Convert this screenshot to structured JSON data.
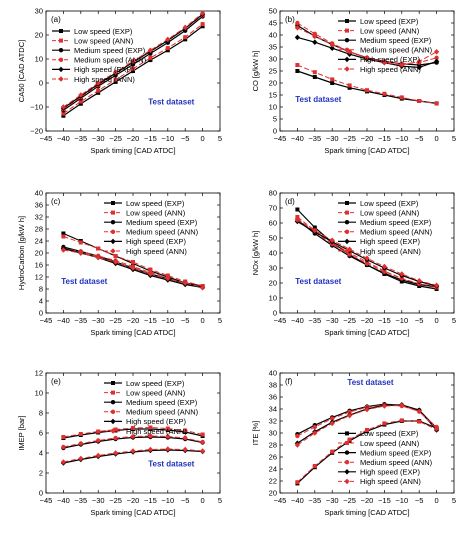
{
  "figure": {
    "x_ticks": [
      "−45",
      "−40",
      "−35",
      "−30",
      "−25",
      "−20",
      "−15",
      "−10",
      "−5",
      "0",
      "5"
    ],
    "xlabel": "Spark timing [CAD ATDC]",
    "test_label": "Test dataset",
    "colors": {
      "exp": "#000000",
      "ann": "#e03030",
      "annotation": "#2233bb"
    }
  },
  "chart_data": [
    {
      "type": "line",
      "panel_label": "(a)",
      "ylabel": "CA50 [CAD ATDC]",
      "xlim": [
        -45,
        5
      ],
      "ylim": [
        -25,
        30
      ],
      "y_ticks": [
        "−20",
        "−10",
        "0",
        "10",
        "20",
        "30"
      ],
      "legend_position": "top-left",
      "annotation_position": "lower-right",
      "x": [
        -40,
        -35,
        -30,
        -25,
        -20,
        -15,
        -10,
        -5,
        0
      ],
      "series": [
        {
          "name": "Low speed (EXP)",
          "style": "exp",
          "values": [
            -18,
            -12.5,
            -7.5,
            -2.5,
            2.5,
            7.5,
            12,
            17,
            23
          ]
        },
        {
          "name": "Low speed (ANN)",
          "style": "ann",
          "values": [
            -17,
            -11.5,
            -6.5,
            -1.5,
            3.5,
            8.5,
            13,
            18,
            24
          ]
        },
        {
          "name": "Medium speed (EXP)",
          "style": "exp",
          "values": [
            -15.5,
            -10,
            -4.5,
            0.5,
            5.5,
            10.5,
            15.5,
            21,
            27.5
          ]
        },
        {
          "name": "Medium speed (ANN)",
          "style": "ann",
          "values": [
            -15,
            -9.5,
            -4,
            1.5,
            6.5,
            11.5,
            16.5,
            22,
            28
          ]
        },
        {
          "name": "High speed (EXP)",
          "style": "exp",
          "values": [
            -14.5,
            -9,
            -3.5,
            1.5,
            6.5,
            11.5,
            16.5,
            22,
            28.5
          ]
        },
        {
          "name": "High speed (ANN)",
          "style": "ann",
          "values": [
            -14,
            -8.5,
            -3,
            2,
            7,
            12,
            17,
            22.5,
            29
          ]
        }
      ]
    },
    {
      "type": "line",
      "panel_label": "(b)",
      "ylabel": "CO [g/kW h]",
      "xlim": [
        -45,
        5
      ],
      "ylim": [
        0,
        50
      ],
      "y_ticks": [
        "0",
        "5",
        "10",
        "15",
        "20",
        "25",
        "30",
        "35",
        "40",
        "45",
        "50"
      ],
      "legend_position": "top-right",
      "annotation_position": "lower-left",
      "x": [
        -40,
        -35,
        -30,
        -25,
        -20,
        -15,
        -10,
        -5,
        0
      ],
      "series": [
        {
          "name": "Low speed (EXP)",
          "style": "exp",
          "values": [
            25,
            22.5,
            20,
            18,
            16.5,
            15,
            13.5,
            12.5,
            11.5
          ]
        },
        {
          "name": "Low speed (ANN)",
          "style": "ann",
          "values": [
            27.5,
            24.5,
            21.5,
            19,
            17,
            15.5,
            14,
            12.5,
            11.5
          ]
        },
        {
          "name": "Medium speed (EXP)",
          "style": "exp",
          "values": [
            44,
            39.5,
            36,
            33,
            30.5,
            29,
            28,
            27.5,
            28.5
          ]
        },
        {
          "name": "Medium speed (ANN)",
          "style": "ann",
          "values": [
            45,
            40.5,
            36.5,
            33,
            30.5,
            29,
            28,
            28.5,
            30.5
          ]
        },
        {
          "name": "High speed (EXP)",
          "style": "exp",
          "values": [
            39,
            37,
            34.5,
            32,
            30,
            28.5,
            27,
            26.5,
            29
          ]
        },
        {
          "name": "High speed (ANN)",
          "style": "ann",
          "values": [
            43,
            39.5,
            36,
            33,
            30.5,
            28.5,
            27.5,
            29,
            33
          ]
        }
      ]
    },
    {
      "type": "line",
      "panel_label": "(c)",
      "ylabel": "HydroCarbon [g/kW h]",
      "xlim": [
        -45,
        5
      ],
      "ylim": [
        0,
        40
      ],
      "y_ticks": [
        "0",
        "4",
        "8",
        "12",
        "16",
        "20",
        "24",
        "28",
        "32",
        "36",
        "40"
      ],
      "legend_position": "top-right",
      "annotation_position": "lower-left",
      "x": [
        -40,
        -35,
        -30,
        -25,
        -20,
        -15,
        -10,
        -5,
        0
      ],
      "series": [
        {
          "name": "Low speed (EXP)",
          "style": "exp",
          "values": [
            26.5,
            24,
            21.5,
            19,
            16.5,
            14,
            12,
            10,
            9
          ]
        },
        {
          "name": "Low speed (ANN)",
          "style": "ann",
          "values": [
            25.5,
            23.5,
            21.5,
            19,
            17,
            14.5,
            12.5,
            10.5,
            9
          ]
        },
        {
          "name": "Medium speed (EXP)",
          "style": "exp",
          "values": [
            22,
            20.5,
            19,
            17,
            15,
            13,
            11.5,
            10,
            8.5
          ]
        },
        {
          "name": "Medium speed (ANN)",
          "style": "ann",
          "values": [
            21.5,
            20.5,
            19,
            17.5,
            15.5,
            13.5,
            11.5,
            10,
            8.5
          ]
        },
        {
          "name": "High speed (EXP)",
          "style": "exp",
          "values": [
            21.5,
            20,
            18.5,
            16.5,
            14.5,
            12.5,
            11,
            9.5,
            8.5
          ]
        },
        {
          "name": "High speed (ANN)",
          "style": "ann",
          "values": [
            21,
            20,
            18.5,
            17,
            15,
            13,
            11.5,
            10,
            8.5
          ]
        }
      ]
    },
    {
      "type": "line",
      "panel_label": "(d)",
      "ylabel": "NOx [g/kW h]",
      "xlim": [
        -45,
        5
      ],
      "ylim": [
        0,
        80
      ],
      "y_ticks": [
        "0",
        "10",
        "20",
        "30",
        "40",
        "50",
        "60",
        "70",
        "80"
      ],
      "legend_position": "top-right",
      "annotation_position": "lower-left",
      "x": [
        -40,
        -35,
        -30,
        -25,
        -20,
        -15,
        -10,
        -5,
        0
      ],
      "series": [
        {
          "name": "Low speed (EXP)",
          "style": "exp",
          "values": [
            69,
            57,
            47,
            39,
            32,
            26,
            21,
            18,
            16
          ]
        },
        {
          "name": "Low speed (ANN)",
          "style": "ann",
          "values": [
            64,
            55,
            47,
            40,
            34,
            28,
            23,
            19,
            17
          ]
        },
        {
          "name": "Medium speed (EXP)",
          "style": "exp",
          "values": [
            62,
            53,
            45,
            38,
            32,
            26.5,
            22,
            19,
            17.5
          ]
        },
        {
          "name": "Medium speed (ANN)",
          "style": "ann",
          "values": [
            63,
            54,
            46,
            39,
            33,
            27.5,
            23,
            19.5,
            17.5
          ]
        },
        {
          "name": "High speed (EXP)",
          "style": "exp",
          "values": [
            61,
            54,
            47.5,
            41.5,
            35.5,
            30,
            25,
            21,
            18
          ]
        },
        {
          "name": "High speed (ANN)",
          "style": "ann",
          "values": [
            62,
            55,
            48.5,
            42.5,
            36.5,
            31,
            26,
            21.5,
            18.5
          ]
        }
      ]
    },
    {
      "type": "line",
      "panel_label": "(e)",
      "ylabel": "IMEP [bar]",
      "xlim": [
        -45,
        5
      ],
      "ylim": [
        0,
        12
      ],
      "y_ticks": [
        "0",
        "2",
        "4",
        "6",
        "8",
        "10",
        "12"
      ],
      "legend_position": "top-right",
      "annotation_position": "lower-right",
      "x": [
        -40,
        -35,
        -30,
        -25,
        -20,
        -15,
        -10,
        -5,
        0
      ],
      "series": [
        {
          "name": "Low speed (EXP)",
          "style": "exp",
          "values": [
            5.5,
            5.8,
            6.05,
            6.25,
            6.4,
            6.4,
            6.3,
            6.1,
            5.7
          ]
        },
        {
          "name": "Low speed (ANN)",
          "style": "ann",
          "values": [
            5.6,
            5.9,
            6.15,
            6.35,
            6.5,
            6.55,
            6.45,
            6.25,
            5.85
          ]
        },
        {
          "name": "Medium speed (EXP)",
          "style": "exp",
          "values": [
            4.5,
            4.85,
            5.15,
            5.4,
            5.55,
            5.6,
            5.55,
            5.4,
            5.05
          ]
        },
        {
          "name": "Medium speed (ANN)",
          "style": "ann",
          "values": [
            4.6,
            4.95,
            5.25,
            5.5,
            5.65,
            5.7,
            5.65,
            5.5,
            5.1
          ]
        },
        {
          "name": "High speed (EXP)",
          "style": "exp",
          "values": [
            3,
            3.35,
            3.65,
            3.9,
            4.1,
            4.25,
            4.3,
            4.25,
            4.15
          ]
        },
        {
          "name": "High speed (ANN)",
          "style": "ann",
          "values": [
            3.1,
            3.45,
            3.75,
            4.0,
            4.2,
            4.35,
            4.4,
            4.35,
            4.2
          ]
        }
      ]
    },
    {
      "type": "line",
      "panel_label": "(f)",
      "ylabel": "ITE [%]",
      "xlim": [
        -45,
        5
      ],
      "ylim": [
        20,
        40
      ],
      "y_ticks": [
        "20",
        "22",
        "24",
        "26",
        "28",
        "30",
        "32",
        "34",
        "36",
        "38",
        "40"
      ],
      "legend_position": "bottom-right",
      "annotation_position": "top-center",
      "x": [
        -40,
        -35,
        -30,
        -25,
        -20,
        -15,
        -10,
        -5,
        0
      ],
      "series": [
        {
          "name": "Low speed (EXP)",
          "style": "exp",
          "values": [
            21.6,
            24.3,
            26.7,
            28.7,
            30.3,
            31.4,
            32.0,
            32.0,
            30.8
          ]
        },
        {
          "name": "Low speed (ANN)",
          "style": "ann",
          "values": [
            21.8,
            24.5,
            26.9,
            28.9,
            30.5,
            31.6,
            32.1,
            31.9,
            30.6
          ]
        },
        {
          "name": "Medium speed (EXP)",
          "style": "exp",
          "values": [
            29.8,
            31.3,
            32.6,
            33.7,
            34.4,
            34.8,
            34.6,
            33.8,
            30.8
          ]
        },
        {
          "name": "Medium speed (ANN)",
          "style": "ann",
          "values": [
            29.5,
            31.0,
            32.4,
            33.5,
            34.3,
            34.7,
            34.5,
            33.6,
            31.0
          ]
        },
        {
          "name": "High speed (EXP)",
          "style": "exp",
          "values": [
            28.3,
            30.2,
            31.8,
            33.0,
            34.0,
            34.6,
            34.7,
            33.8,
            30.5
          ]
        },
        {
          "name": "High speed (ANN)",
          "style": "ann",
          "values": [
            28.0,
            30.0,
            31.6,
            32.9,
            33.9,
            34.5,
            34.6,
            33.6,
            30.7
          ]
        }
      ]
    }
  ]
}
